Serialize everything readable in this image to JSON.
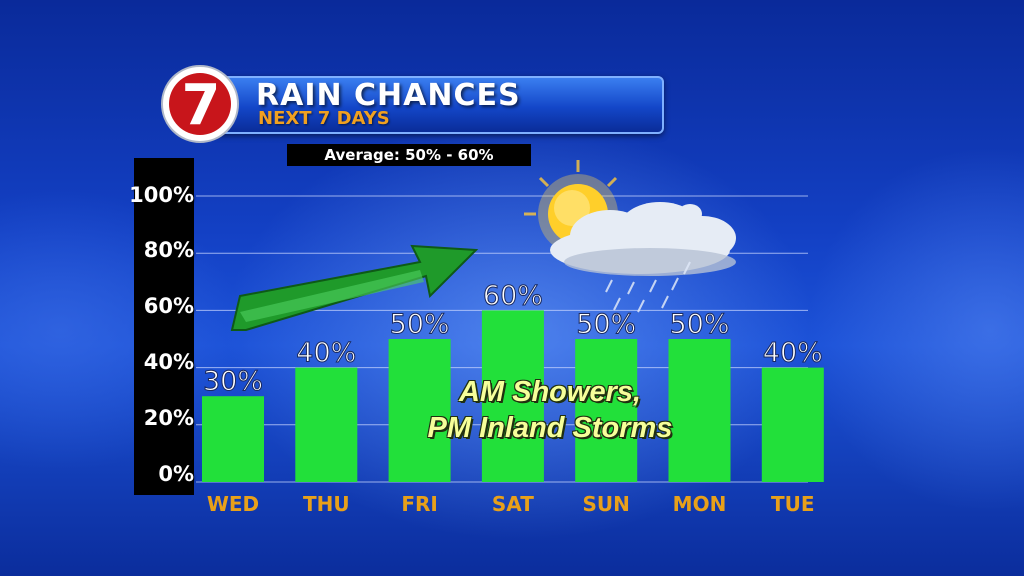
{
  "logo": {
    "text": "7",
    "icon": "channel-7-logo-icon"
  },
  "header": {
    "title": "RAIN CHANCES",
    "subtitle": "NEXT 7 DAYS",
    "average": "Average: 50% - 60%"
  },
  "annotation": {
    "line1": "AM Showers,",
    "line2": "PM Inland Storms"
  },
  "colors": {
    "bar": "#22e03a",
    "day_label": "#e8a01a",
    "value_label": "#ffffff",
    "grid": "#c9d6ff",
    "arrow": "#1f9a2a"
  },
  "chart_data": {
    "type": "bar",
    "categories": [
      "WED",
      "THU",
      "FRI",
      "SAT",
      "SUN",
      "MON",
      "TUE"
    ],
    "values": [
      30,
      40,
      50,
      60,
      50,
      50,
      40
    ],
    "value_labels": [
      "30%",
      "40%",
      "50%",
      "60%",
      "50%",
      "50%",
      "40%"
    ],
    "y_ticks": [
      "100%",
      "80%",
      "60%",
      "40%",
      "20%",
      "0%"
    ],
    "ylim": [
      0,
      100
    ],
    "grid": true,
    "title": "RAIN CHANCES",
    "subtitle": "NEXT 7 DAYS"
  }
}
